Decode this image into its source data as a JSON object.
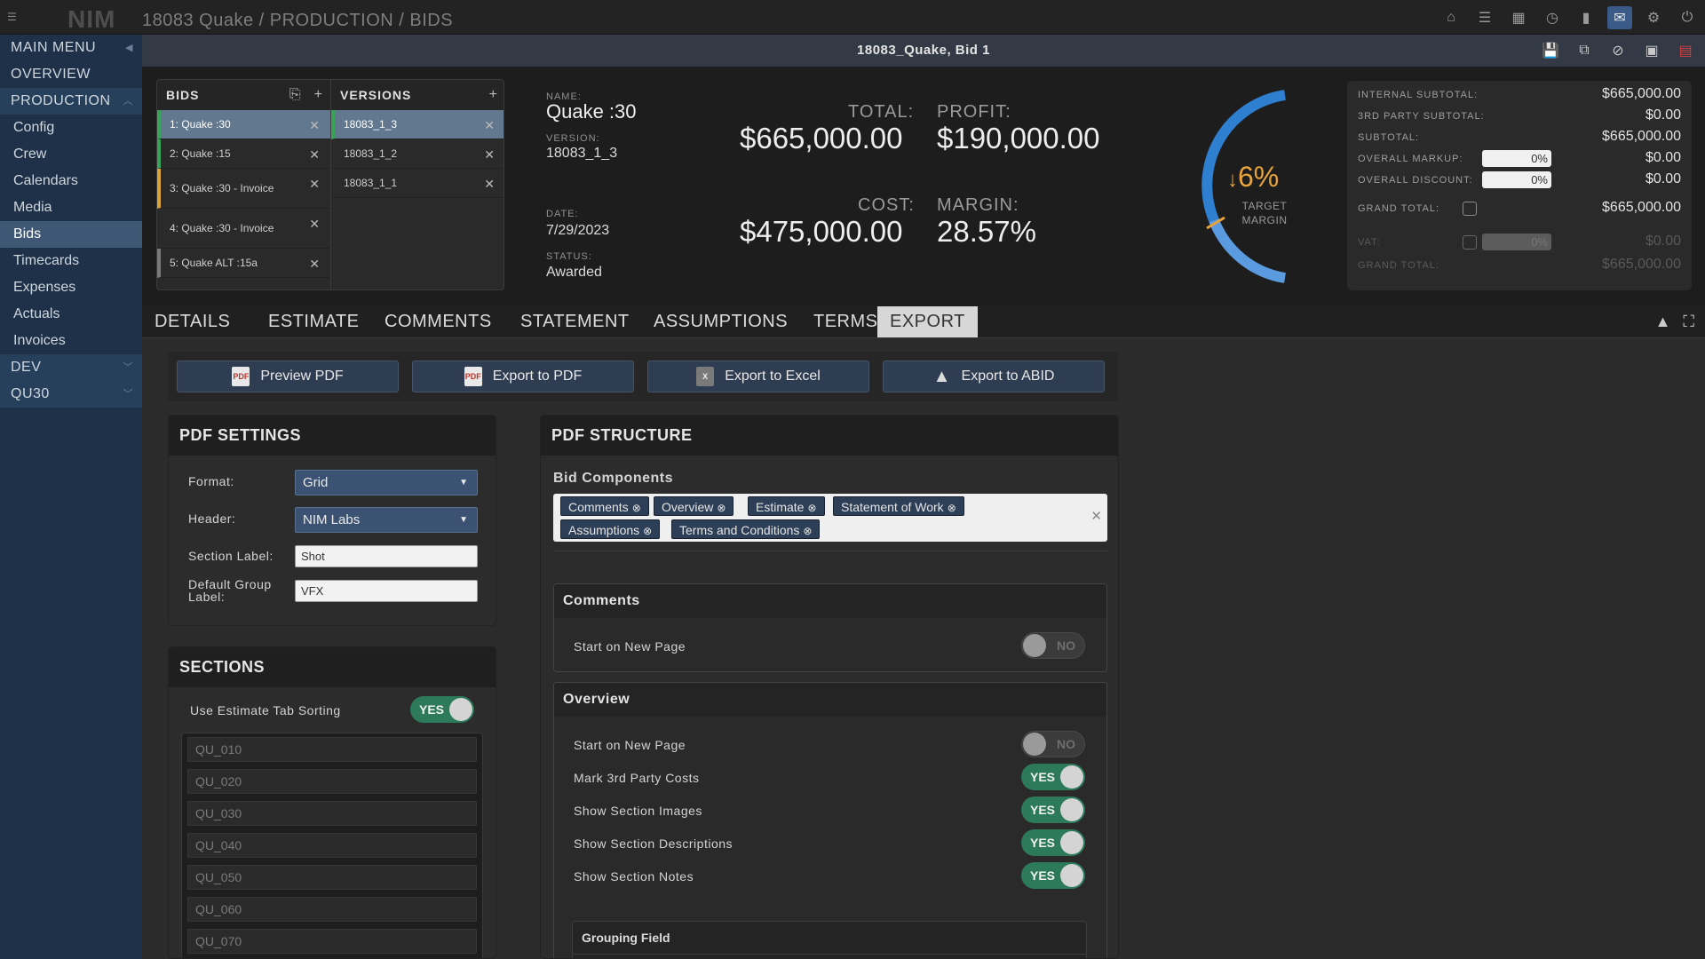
{
  "topbar": {
    "logo": "NIM",
    "breadcrumb": "18083 Quake / PRODUCTION / BIDS",
    "icons": [
      "home-icon",
      "list-icon",
      "calendar-icon",
      "clock-icon",
      "bookmark-icon",
      "inbox-icon",
      "gear-icon",
      "power-icon"
    ]
  },
  "sidebar": {
    "main_menu": "MAIN MENU",
    "overview": "OVERVIEW",
    "production": "PRODUCTION",
    "items": [
      "Config",
      "Crew",
      "Calendars",
      "Media",
      "Bids",
      "Timecards",
      "Expenses",
      "Actuals",
      "Invoices"
    ],
    "active": "Bids",
    "dev": "DEV",
    "qu30": "QU30"
  },
  "titlebar": {
    "title": "18083_Quake, Bid 1"
  },
  "bids": {
    "header": "BIDS",
    "rows": [
      {
        "label": "1: Quake :30"
      },
      {
        "label": "2: Quake :15"
      },
      {
        "label": "3: Quake :30 - Invoice"
      },
      {
        "label": "4: Quake :30 - Invoice"
      },
      {
        "label": "5: Quake ALT :15a"
      }
    ]
  },
  "versions": {
    "header": "VERSIONS",
    "rows": [
      "18083_1_3",
      "18083_1_2",
      "18083_1_1"
    ]
  },
  "bid_info": {
    "name_label": "NAME:",
    "name": "Quake :30",
    "version_label": "VERSION:",
    "version": "18083_1_3",
    "date_label": "DATE:",
    "date": "7/29/2023",
    "status_label": "STATUS:",
    "status": "Awarded",
    "total_label": "TOTAL:",
    "total": "$665,000.00",
    "profit_label": "PROFIT:",
    "profit": "$190,000.00",
    "cost_label": "COST:",
    "cost": "$475,000.00",
    "margin_label": "MARGIN:",
    "margin": "28.57%"
  },
  "gauge": {
    "value": "6%",
    "arrow": "↓",
    "label": "TARGET MARGIN",
    "colors": {
      "main": "#2f7fd0",
      "light": "#5a9be0",
      "marker": "#e8a43a"
    }
  },
  "totals": {
    "internal_subtotal_label": "INTERNAL SUBTOTAL:",
    "internal_subtotal": "$665,000.00",
    "third_party_label": "3RD PARTY SUBTOTAL:",
    "third_party": "$0.00",
    "subtotal_label": "SUBTOTAL:",
    "subtotal": "$665,000.00",
    "markup_label": "OVERALL MARKUP:",
    "markup_input": "0%",
    "markup_value": "$0.00",
    "discount_label": "OVERALL DISCOUNT:",
    "discount_input": "0%",
    "discount_value": "$0.00",
    "grand_total_label": "GRAND TOTAL:",
    "grand_total": "$665,000.00",
    "vat_label": "VAT:",
    "vat_input": "0%",
    "vat_value": "$0.00",
    "grand_total2_label": "GRAND TOTAL:",
    "grand_total2": "$665,000.00"
  },
  "tabs": [
    "DETAILS",
    "ESTIMATE",
    "COMMENTS",
    "STATEMENT",
    "ASSUMPTIONS",
    "TERMS",
    "EXPORT"
  ],
  "active_tab": "EXPORT",
  "export_buttons": {
    "preview_pdf": "Preview PDF",
    "export_pdf": "Export to PDF",
    "export_excel": "Export to Excel",
    "export_abid": "Export to ABID"
  },
  "pdf_settings": {
    "title": "PDF SETTINGS",
    "format_label": "Format:",
    "format": "Grid",
    "header_label": "Header:",
    "header": "NIM Labs",
    "section_label_label": "Section Label:",
    "section_label": "Shot",
    "default_group_label": "Default Group Label:",
    "default_group": "VFX"
  },
  "sections": {
    "title": "SECTIONS",
    "sorting_label": "Use Estimate Tab Sorting",
    "sorting": "YES",
    "items": [
      "QU_010",
      "QU_020",
      "QU_030",
      "QU_040",
      "QU_050",
      "QU_060",
      "QU_070"
    ]
  },
  "pdf_structure": {
    "title": "PDF STRUCTURE",
    "bid_components_label": "Bid Components",
    "tags": [
      "Comments",
      "Overview",
      "Estimate",
      "Statement of Work",
      "Assumptions",
      "Terms and Conditions"
    ],
    "comments_card": {
      "title": "Comments",
      "start_new_page_label": "Start on New Page",
      "start_new_page": "NO"
    },
    "overview_card": {
      "title": "Overview",
      "options": [
        {
          "label": "Start on New Page",
          "value": "NO"
        },
        {
          "label": "Mark 3rd Party Costs",
          "value": "YES"
        },
        {
          "label": "Show Section Images",
          "value": "YES"
        },
        {
          "label": "Show Section Descriptions",
          "value": "YES"
        },
        {
          "label": "Show Section Notes",
          "value": "YES"
        }
      ],
      "grouping_field_label": "Grouping Field"
    }
  }
}
